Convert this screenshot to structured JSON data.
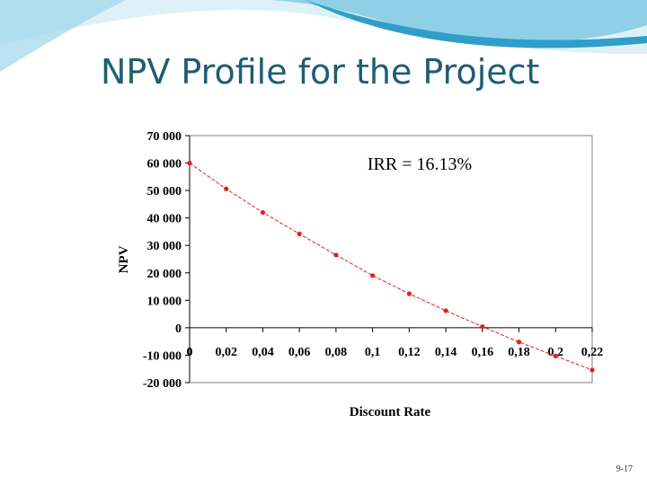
{
  "slide": {
    "title": "NPV Profile for the Project",
    "page_number": "9-17"
  },
  "colors": {
    "title": "#1f5d72",
    "banner_light": "#dff1f8",
    "banner_mid": "#8fd0e6",
    "banner_dark": "#2f9ec8",
    "curve": "#e0201a",
    "axis": "#000000"
  },
  "chart_data": {
    "type": "line",
    "xlabel": "Discount Rate",
    "ylabel": "NPV",
    "annotation": "IRR = 16.13%",
    "xlim": [
      0,
      0.22
    ],
    "ylim": [
      -20000,
      70000
    ],
    "x_tick_labels": [
      "0",
      "0,02",
      "0,04",
      "0,06",
      "0,08",
      "0,1",
      "0,12",
      "0,14",
      "0,16",
      "0,18",
      "0,2",
      "0,22"
    ],
    "y_tick_labels": [
      "70 000",
      "60 000",
      "50 000",
      "40 000",
      "30 000",
      "20 000",
      "10 000",
      "0",
      "-10 000",
      "-20 000"
    ],
    "y_tick_values": [
      70000,
      60000,
      50000,
      40000,
      30000,
      20000,
      10000,
      0,
      -10000,
      -20000
    ],
    "grid": false,
    "series": [
      {
        "x": [
          0,
          0.02,
          0.04,
          0.06,
          0.08,
          0.1,
          0.12,
          0.14,
          0.16,
          0.18,
          0.2,
          0.22
        ],
        "values": [
          60000,
          50600,
          42000,
          34200,
          26500,
          19000,
          12400,
          6200,
          400,
          -5200,
          -10300,
          -15400
        ]
      }
    ]
  }
}
